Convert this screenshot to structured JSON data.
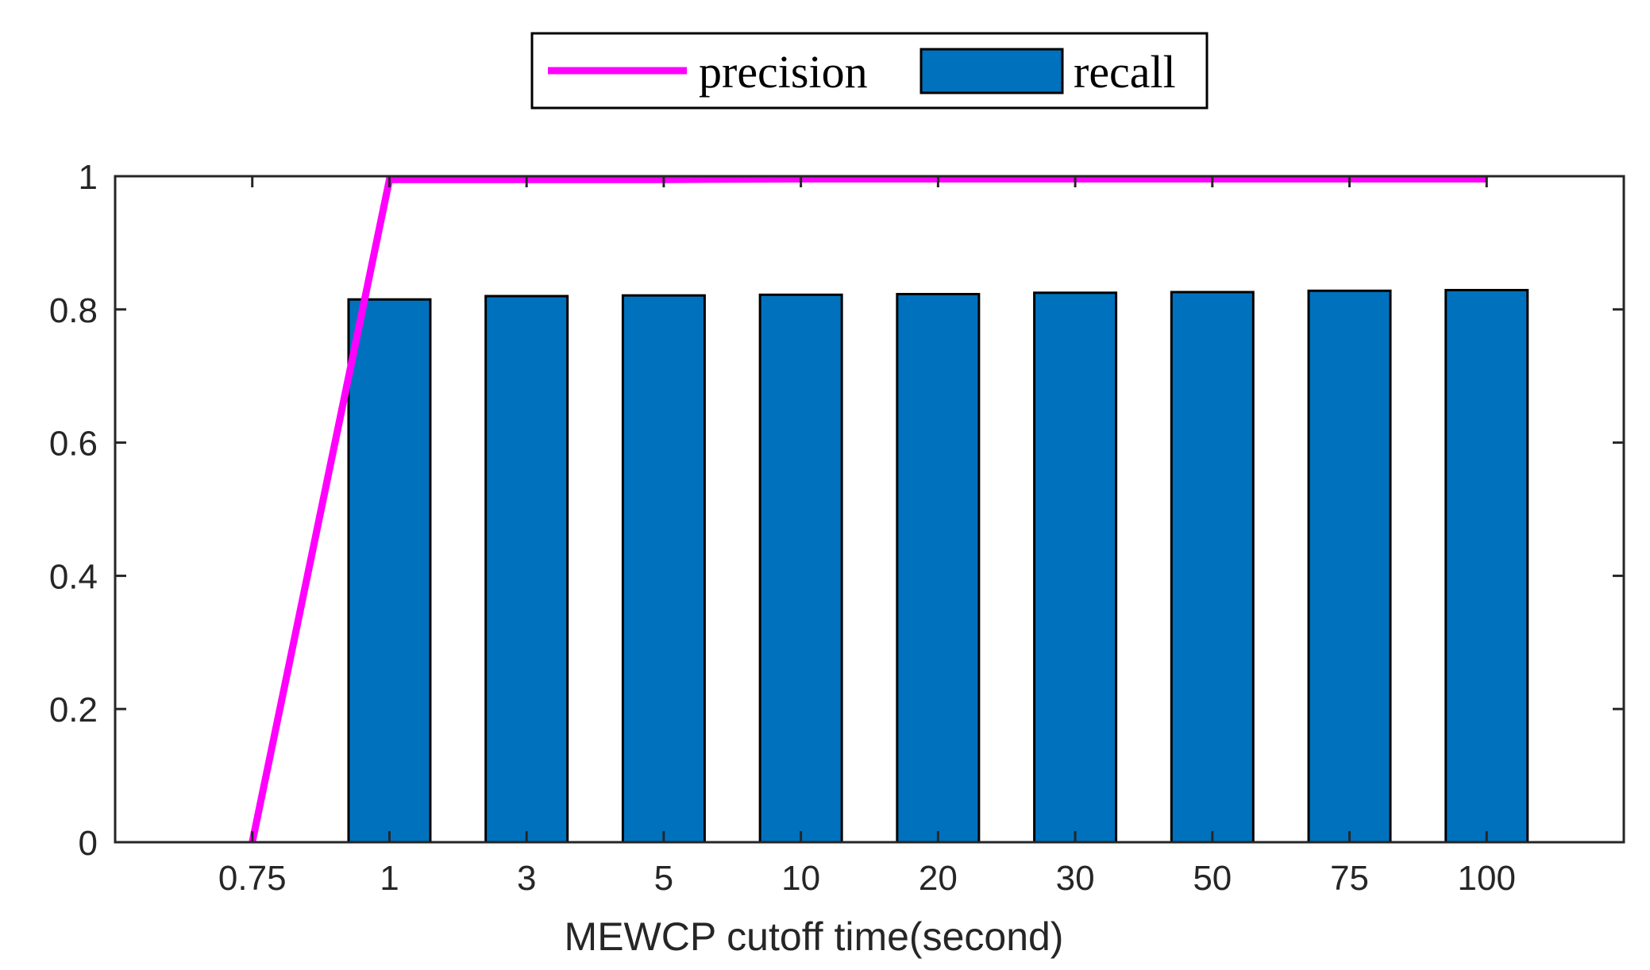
{
  "chart_data": {
    "type": "bar",
    "categories": [
      "0.75",
      "1",
      "3",
      "5",
      "10",
      "20",
      "30",
      "50",
      "75",
      "100"
    ],
    "series": [
      {
        "name": "recall",
        "kind": "bar",
        "color": "#0072BD",
        "values": [
          0,
          0.815,
          0.82,
          0.821,
          0.822,
          0.823,
          0.825,
          0.826,
          0.828,
          0.829
        ]
      },
      {
        "name": "precision",
        "kind": "line",
        "color": "#FF00FF",
        "values": [
          0,
          0.995,
          0.995,
          0.995,
          0.996,
          0.996,
          0.996,
          0.996,
          0.996,
          0.996
        ]
      }
    ],
    "xlabel": "MEWCP cutoff time(second)",
    "ylabel": "",
    "ylim": [
      0,
      1
    ],
    "yticks": [
      "0",
      "0.2",
      "0.4",
      "0.6",
      "0.8",
      "1"
    ],
    "grid": false,
    "legend": {
      "placement": "top-center",
      "orientation": "horizontal",
      "entries": [
        "precision",
        "recall"
      ]
    }
  }
}
